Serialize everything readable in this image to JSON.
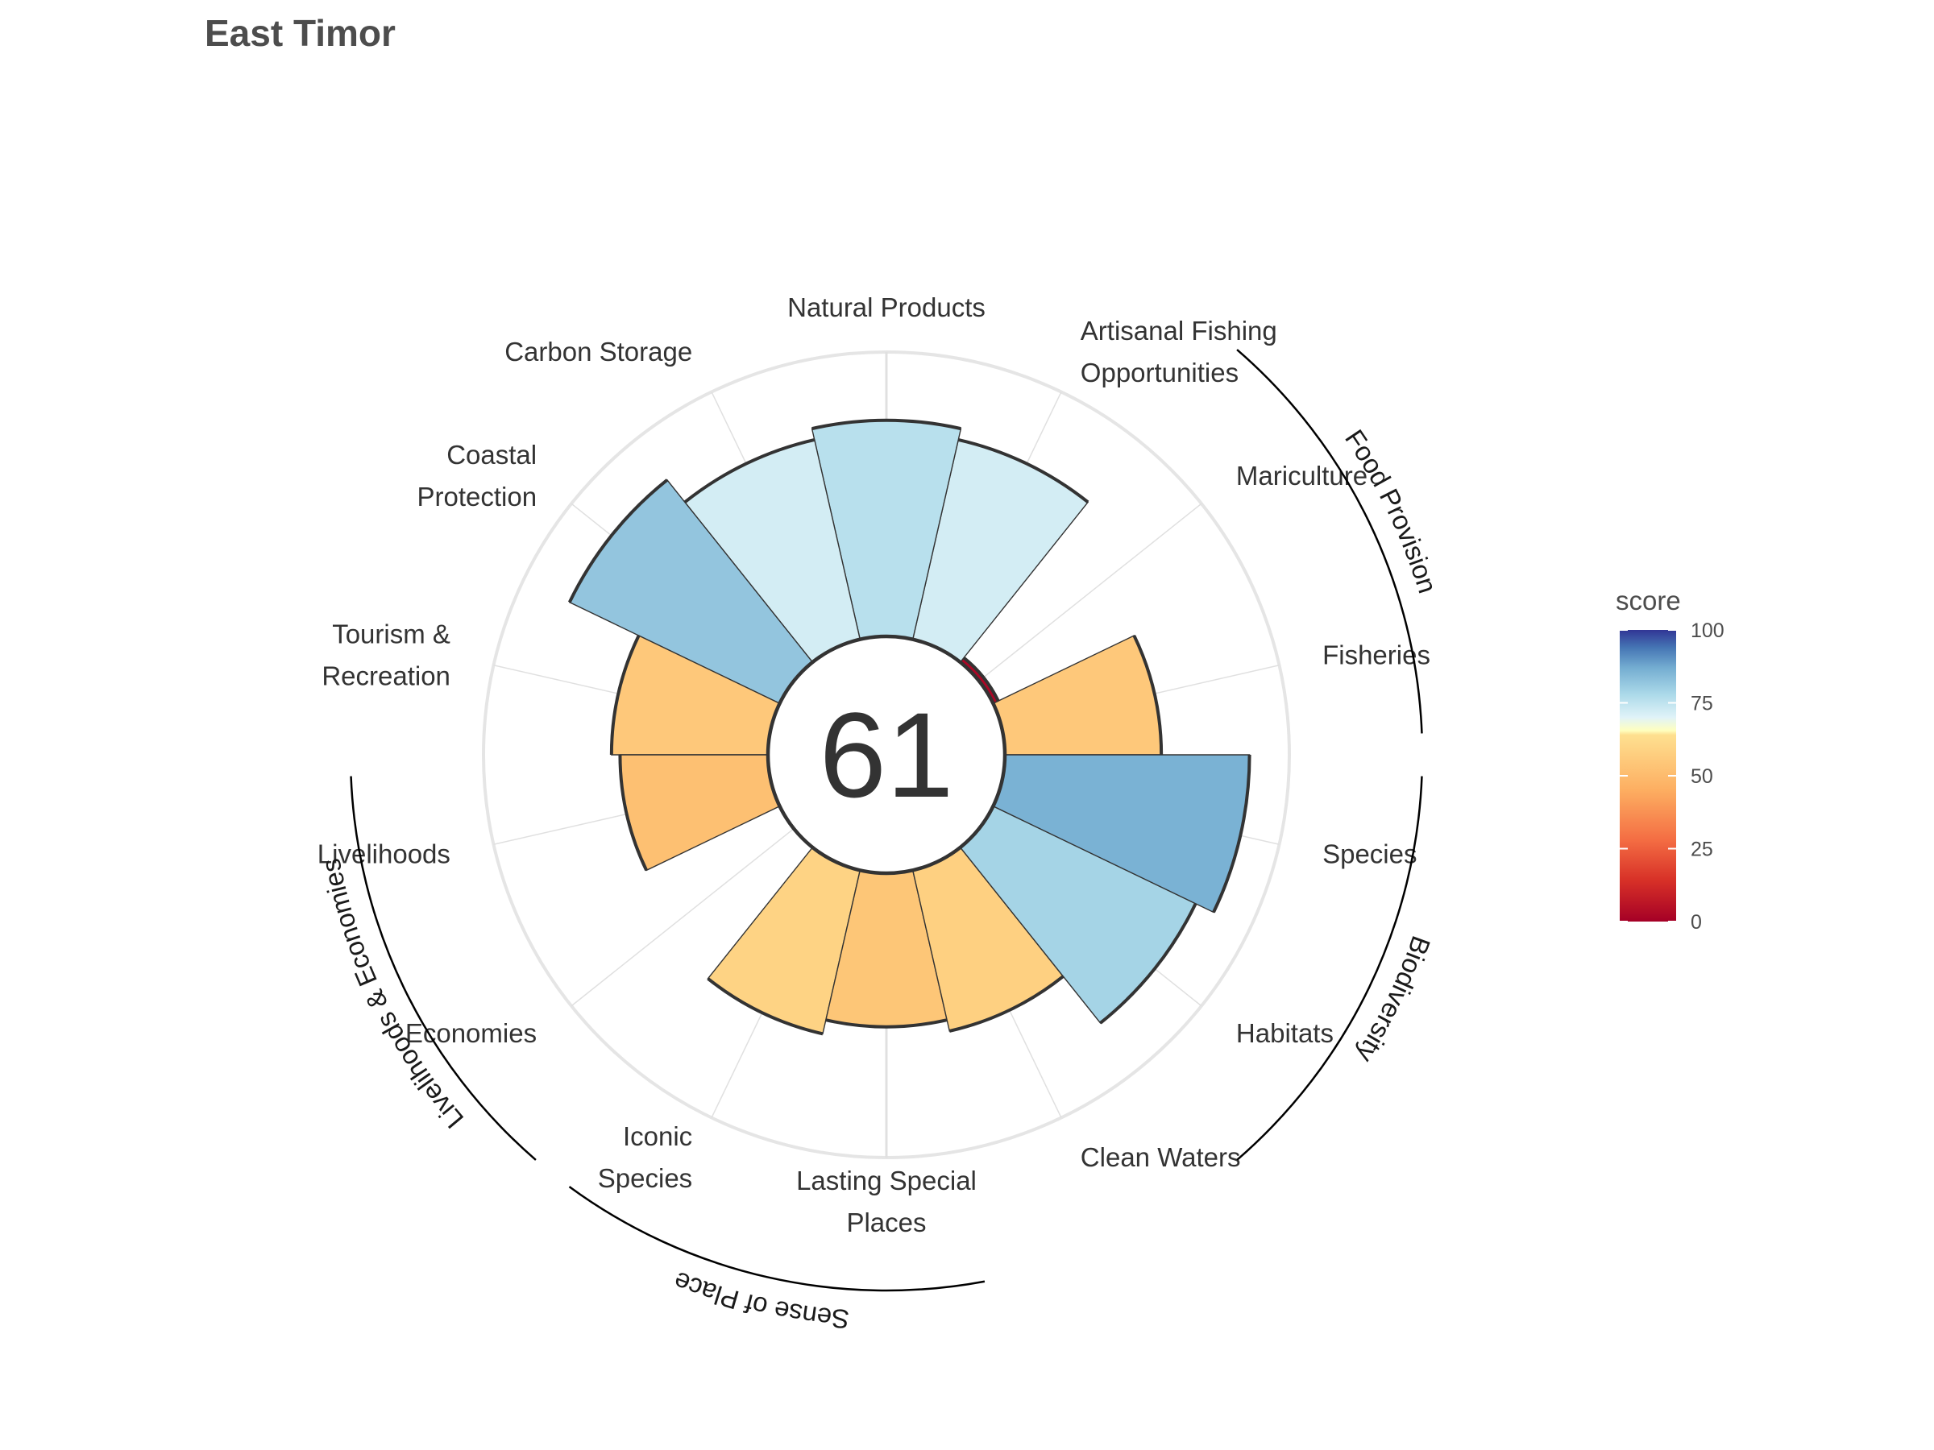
{
  "title": "East Timor",
  "chart_data": {
    "type": "polar-bar",
    "index_score": "61",
    "max_score": 100,
    "goals": [
      {
        "label": [
          "Fisheries"
        ],
        "score": 55
      },
      {
        "label": [
          "Mariculture"
        ],
        "score": 2
      },
      {
        "label": [
          "Artisanal Fishing",
          "Opportunities"
        ],
        "score": 72
      },
      {
        "label": [
          "Natural Products"
        ],
        "score": 76
      },
      {
        "label": [
          "Carbon Storage"
        ],
        "score": 72
      },
      {
        "label": [
          "Coastal",
          "Protection"
        ],
        "score": 82
      },
      {
        "label": [
          "Tourism &",
          "Recreation"
        ],
        "score": 55
      },
      {
        "label": [
          "Livelihoods"
        ],
        "score": 52
      },
      {
        "label": [
          "Economies"
        ],
        "score": 0
      },
      {
        "label": [
          "Iconic",
          "Species"
        ],
        "score": 59
      },
      {
        "label": [
          "Lasting Special",
          "Places"
        ],
        "score": 54
      },
      {
        "label": [
          "Clean Waters"
        ],
        "score": 58
      },
      {
        "label": [
          "Habitats"
        ],
        "score": 79
      },
      {
        "label": [
          "Species"
        ],
        "score": 86
      }
    ],
    "groups": [
      {
        "name": "Food Provision",
        "members": [
          "Fisheries",
          "Mariculture"
        ]
      },
      {
        "name": "Biodiversity",
        "members": [
          "Habitats",
          "Species"
        ]
      },
      {
        "name": "Livelihoods & Economies",
        "members": [
          "Livelihoods",
          "Economies"
        ]
      },
      {
        "name": "Sense of Place",
        "members": [
          "Iconic Species",
          "Lasting Special Places"
        ]
      }
    ],
    "legend": {
      "title": "score",
      "ticks": [
        "100",
        "75",
        "50",
        "25",
        "0"
      ],
      "colors": [
        "#313695",
        "#4575b4",
        "#74add1",
        "#abd9e9",
        "#e0f3f8",
        "#fee090",
        "#fdae61",
        "#f46d43",
        "#d73027",
        "#a50026"
      ]
    }
  }
}
